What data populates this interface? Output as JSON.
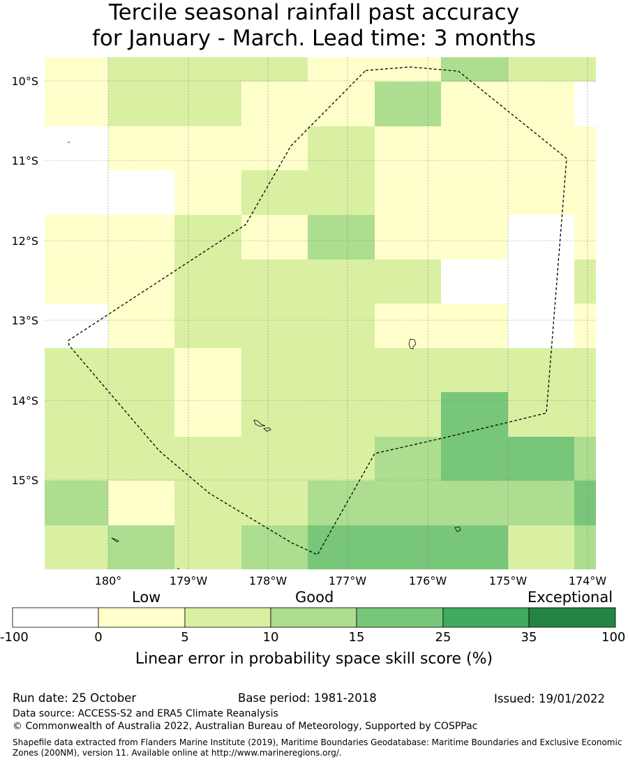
{
  "title": {
    "line1": "Tercile seasonal rainfall past accuracy",
    "line2": "for January - March. Lead time: 3 months"
  },
  "map": {
    "lat_labels": [
      "10°S",
      "11°S",
      "12°S",
      "13°S",
      "14°S",
      "15°S"
    ],
    "lon_labels": [
      "180°",
      "179°W",
      "178°W",
      "177°W",
      "176°W",
      "175°W",
      "174°W"
    ],
    "grid": [
      [
        1,
        2,
        2,
        2,
        1,
        1,
        3,
        2,
        2
      ],
      [
        1,
        2,
        2,
        1,
        1,
        3,
        1,
        1,
        0
      ],
      [
        0,
        1,
        1,
        1,
        2,
        1,
        1,
        1,
        1
      ],
      [
        0,
        0,
        1,
        2,
        2,
        1,
        1,
        1,
        1
      ],
      [
        1,
        1,
        2,
        1,
        3,
        1,
        1,
        0,
        1
      ],
      [
        1,
        1,
        2,
        2,
        2,
        2,
        0,
        0,
        2
      ],
      [
        0,
        1,
        2,
        2,
        2,
        1,
        1,
        0,
        1
      ],
      [
        2,
        2,
        1,
        2,
        2,
        2,
        2,
        2,
        2
      ],
      [
        2,
        2,
        1,
        2,
        2,
        2,
        4,
        2,
        2
      ],
      [
        2,
        2,
        2,
        2,
        2,
        3,
        4,
        4,
        3
      ],
      [
        3,
        1,
        2,
        2,
        3,
        3,
        3,
        3,
        4
      ],
      [
        2,
        3,
        2,
        3,
        4,
        4,
        4,
        2,
        3
      ]
    ],
    "colors": [
      "#ffffff",
      "#ffffcc",
      "#d9f0a3",
      "#addd8e",
      "#78c679",
      "#41ab5d",
      "#238443"
    ]
  },
  "legend": {
    "category_low": "Low",
    "category_good": "Good",
    "category_exceptional": "Exceptional",
    "ticks": [
      "-100",
      "0",
      "5",
      "10",
      "15",
      "25",
      "35",
      "100"
    ],
    "title": "Linear error in probability space skill score (%)"
  },
  "footer": {
    "run_date": "Run date: 25 October",
    "base_period": "Base period: 1981-2018",
    "issued": "Issued: 19/01/2022",
    "data_source": "Data source: ACCESS-S2 and ERA5 Climate Reanalysis",
    "copyright": "© Commonwealth of Australia 2022, Australian Bureau of Meteorology, Supported by COSPPac",
    "shapefile_line1": "Shapefile data extracted from Flanders Marine Institute (2019), Maritime Boundaries Geodatabase: Maritime Boundaries and Exclusive Economic",
    "shapefile_line2": "Zones (200NM), version 11. Available online at http://www.marineregions.org/."
  }
}
